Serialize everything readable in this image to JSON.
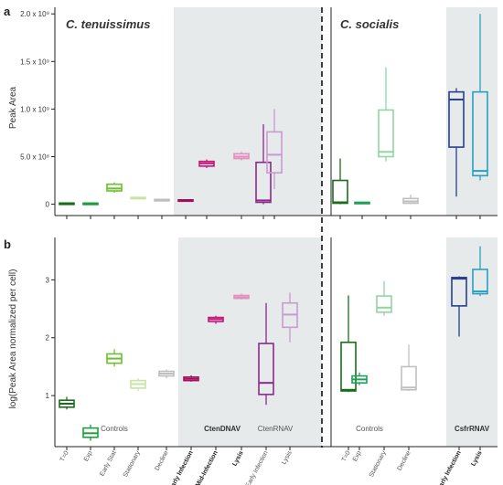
{
  "figure": {
    "panel_a_label": "a",
    "panel_b_label": "b",
    "species_left": "C. tenuissimus",
    "species_right": "C. socialis",
    "group_labels": {
      "controls_left": "Controls",
      "ctendnav": "CtenDNAV",
      "ctenrnav": "CtenRNAV",
      "controls_right": "Controls",
      "csfrnav": "CsfrRNAV"
    },
    "categories": [
      "T=0",
      "Exp",
      "Early Stat",
      "Stationary",
      "Decline",
      "Early Infection",
      "Mid-Infection",
      "Lysis",
      "Early Infection",
      "Lysis",
      "T=0",
      "Exp",
      "Stationary",
      "Decline",
      "Early Infection",
      "Lysis"
    ],
    "bold_categories": [
      5,
      6,
      7,
      14,
      15
    ],
    "colors": [
      "#1a6e1a",
      "#1e9e3a",
      "#6abf2e",
      "#c8e4a6",
      "#bdbdbd",
      "#a0105a",
      "#c8167a",
      "#e58ec0",
      "#8a2a8a",
      "#c89ad0",
      "#1a6e1a",
      "#1ea05a",
      "#8fd6a0",
      "#c0c0c0",
      "#2a3f8f",
      "#2aa0c0"
    ]
  },
  "chart_data": [
    {
      "type": "box",
      "panel": "a",
      "ylabel": "Peak Area",
      "ylim": [
        -100000000,
        2050000000
      ],
      "yticks": [
        0,
        500000000,
        1000000000,
        1500000000,
        2000000000
      ],
      "ytick_labels": [
        "0",
        "5.0 x 10⁸",
        "1.0 x 10⁹",
        "1.5 x 10⁹",
        "2.0 x 10⁹"
      ],
      "series": [
        {
          "category": "T=0",
          "min": 5000000,
          "q1": 8000000,
          "median": 10000000,
          "q3": 12000000,
          "max": 14000000
        },
        {
          "category": "Exp",
          "min": 5000000,
          "q1": 7000000,
          "median": 9000000,
          "q3": 11000000,
          "max": 13000000
        },
        {
          "category": "Early Stat",
          "min": 120000000,
          "q1": 140000000,
          "median": 165000000,
          "q3": 210000000,
          "max": 230000000
        },
        {
          "category": "Stationary",
          "min": 55000000,
          "q1": 60000000,
          "median": 65000000,
          "q3": 72000000,
          "max": 78000000
        },
        {
          "category": "Decline",
          "min": 40000000,
          "q1": 42000000,
          "median": 45000000,
          "q3": 50000000,
          "max": 55000000
        },
        {
          "category": "Early Infection",
          "min": 30000000,
          "q1": 33000000,
          "median": 38000000,
          "q3": 46000000,
          "max": 50000000
        },
        {
          "category": "Mid-Infection",
          "min": 380000000,
          "q1": 400000000,
          "median": 430000000,
          "q3": 450000000,
          "max": 470000000
        },
        {
          "category": "Lysis",
          "min": 460000000,
          "q1": 480000000,
          "median": 500000000,
          "q3": 530000000,
          "max": 550000000
        },
        {
          "category": "Early Infection",
          "min": 0,
          "q1": 20000000,
          "median": 40000000,
          "q3": 440000000,
          "max": 840000000
        },
        {
          "category": "Lysis",
          "min": 160000000,
          "q1": 330000000,
          "median": 520000000,
          "q3": 760000000,
          "max": 1000000000
        },
        {
          "category": "T=0",
          "min": 0,
          "q1": 10000000,
          "median": 20000000,
          "q3": 250000000,
          "max": 480000000
        },
        {
          "category": "Exp",
          "min": 10000000,
          "q1": 13000000,
          "median": 16000000,
          "q3": 20000000,
          "max": 24000000
        },
        {
          "category": "Stationary",
          "min": 450000000,
          "q1": 500000000,
          "median": 550000000,
          "q3": 990000000,
          "max": 1440000000
        },
        {
          "category": "Decline",
          "min": 0,
          "q1": 10000000,
          "median": 30000000,
          "q3": 60000000,
          "max": 100000000
        },
        {
          "category": "Early Infection",
          "min": 80000000,
          "q1": 600000000,
          "median": 1100000000,
          "q3": 1180000000,
          "max": 1220000000
        },
        {
          "category": "Lysis",
          "min": 250000000,
          "q1": 300000000,
          "median": 350000000,
          "q3": 1180000000,
          "max": 2000000000
        }
      ]
    },
    {
      "type": "box",
      "panel": "b",
      "ylabel": "log(Peak Area normalized per cell)",
      "ylim": [
        0.15,
        3.7
      ],
      "yticks": [
        1,
        2,
        3
      ],
      "ytick_labels": [
        "1",
        "2",
        "3"
      ],
      "series": [
        {
          "category": "T=0",
          "min": 0.76,
          "q1": 0.8,
          "median": 0.86,
          "q3": 0.92,
          "max": 0.98
        },
        {
          "category": "Exp",
          "min": 0.22,
          "q1": 0.28,
          "median": 0.35,
          "q3": 0.44,
          "max": 0.5
        },
        {
          "category": "Early Stat",
          "min": 1.5,
          "q1": 1.56,
          "median": 1.64,
          "q3": 1.72,
          "max": 1.8
        },
        {
          "category": "Stationary",
          "min": 1.08,
          "q1": 1.13,
          "median": 1.2,
          "q3": 1.26,
          "max": 1.3
        },
        {
          "category": "Decline",
          "min": 1.3,
          "q1": 1.34,
          "median": 1.38,
          "q3": 1.42,
          "max": 1.45
        },
        {
          "category": "Early Infection",
          "min": 1.24,
          "q1": 1.26,
          "median": 1.29,
          "q3": 1.32,
          "max": 1.35
        },
        {
          "category": "Mid-Infection",
          "min": 2.24,
          "q1": 2.28,
          "median": 2.32,
          "q3": 2.35,
          "max": 2.38
        },
        {
          "category": "Lysis",
          "min": 2.66,
          "q1": 2.68,
          "median": 2.7,
          "q3": 2.73,
          "max": 2.76
        },
        {
          "category": "Early Infection",
          "min": 0.84,
          "q1": 1.02,
          "median": 1.22,
          "q3": 1.9,
          "max": 2.6
        },
        {
          "category": "Lysis",
          "min": 1.92,
          "q1": 2.18,
          "median": 2.4,
          "q3": 2.6,
          "max": 2.78
        },
        {
          "category": "T=0",
          "min": 1.06,
          "q1": 1.08,
          "median": 1.1,
          "q3": 1.92,
          "max": 2.73
        },
        {
          "category": "Exp",
          "min": 1.18,
          "q1": 1.22,
          "median": 1.28,
          "q3": 1.34,
          "max": 1.4
        },
        {
          "category": "Stationary",
          "min": 2.38,
          "q1": 2.44,
          "median": 2.52,
          "q3": 2.72,
          "max": 2.98
        },
        {
          "category": "Decline",
          "min": 1.08,
          "q1": 1.1,
          "median": 1.14,
          "q3": 1.5,
          "max": 1.88
        },
        {
          "category": "Early Infection",
          "min": 2.02,
          "q1": 2.55,
          "median": 3.02,
          "q3": 3.04,
          "max": 3.06
        },
        {
          "category": "Lysis",
          "min": 2.72,
          "q1": 2.76,
          "median": 2.8,
          "q3": 3.18,
          "max": 3.58
        }
      ]
    }
  ]
}
